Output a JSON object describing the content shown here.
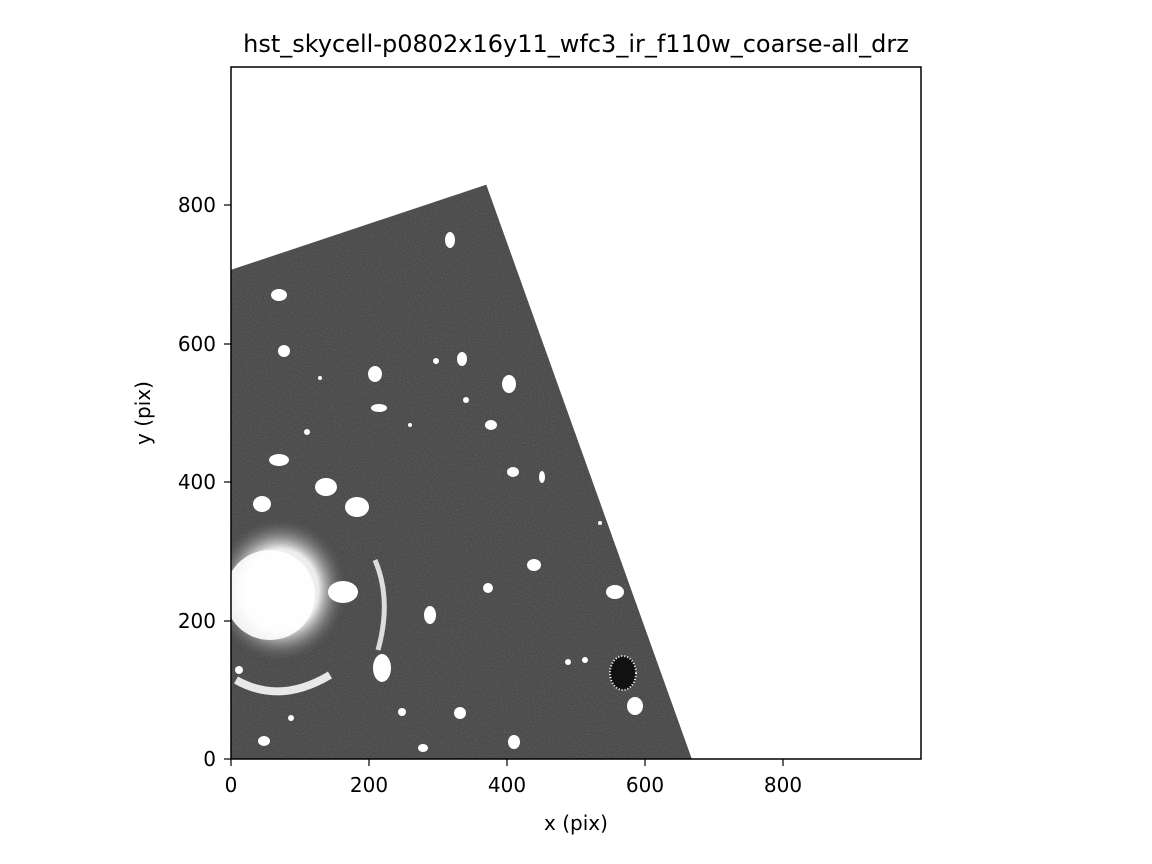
{
  "title": "hst_skycell-p0802x16y11_wfc3_ir_f110w_coarse-all_drz",
  "xlabel": "x (pix)",
  "ylabel": "y (pix)",
  "x_ticks": [
    "0",
    "200",
    "400",
    "600",
    "800"
  ],
  "y_ticks": [
    "0",
    "200",
    "400",
    "600",
    "800"
  ],
  "image": {
    "colormap": "gray",
    "axis_range": {
      "x": [
        0,
        1000
      ],
      "y": [
        0,
        1000
      ]
    },
    "footprint_corners_pix": [
      [
        0,
        0
      ],
      [
        0,
        707
      ],
      [
        370,
        830
      ],
      [
        668,
        0
      ]
    ],
    "background_color": "#ffffff",
    "data_color": "#3a3a3a"
  }
}
